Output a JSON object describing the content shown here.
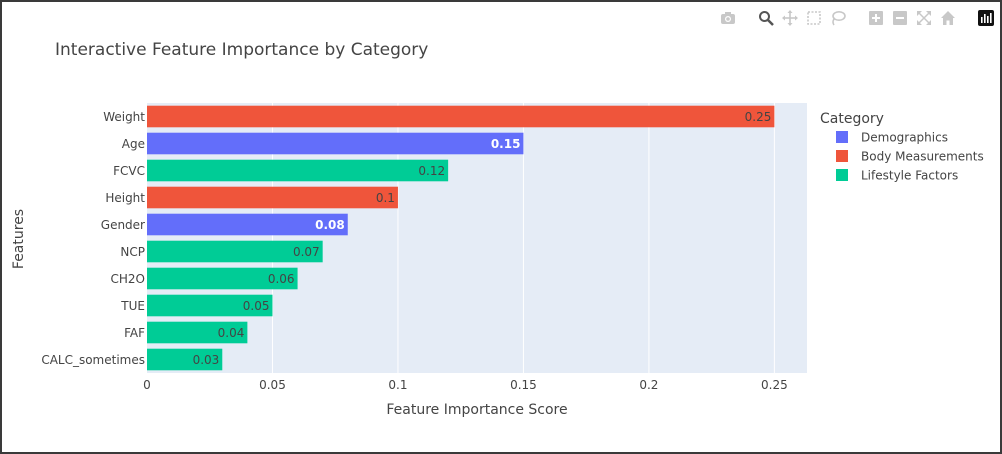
{
  "chart_data": {
    "type": "bar",
    "orientation": "horizontal",
    "title": "Interactive Feature Importance by Category",
    "xlabel": "Feature Importance Score",
    "ylabel": "Features",
    "xlim": [
      0,
      0.263
    ],
    "x_ticks": [
      0,
      0.05,
      0.1,
      0.15,
      0.2,
      0.25
    ],
    "x_tick_labels": [
      "0",
      "0.05",
      "0.1",
      "0.15",
      "0.2",
      "0.25"
    ],
    "grid": true,
    "legend": {
      "title": "Category",
      "placement": "right",
      "entries": [
        {
          "name": "Demographics",
          "color": "#636efa"
        },
        {
          "name": "Body Measurements",
          "color": "#ef553b"
        },
        {
          "name": "Lifestyle Factors",
          "color": "#00cc96"
        }
      ]
    },
    "bars": [
      {
        "feature": "Weight",
        "value": 0.25,
        "label": "0.25",
        "category": "Body Measurements"
      },
      {
        "feature": "Age",
        "value": 0.15,
        "label": "0.15",
        "category": "Demographics"
      },
      {
        "feature": "FCVC",
        "value": 0.12,
        "label": "0.12",
        "category": "Lifestyle Factors"
      },
      {
        "feature": "Height",
        "value": 0.1,
        "label": "0.1",
        "category": "Body Measurements"
      },
      {
        "feature": "Gender",
        "value": 0.08,
        "label": "0.08",
        "category": "Demographics"
      },
      {
        "feature": "NCP",
        "value": 0.07,
        "label": "0.07",
        "category": "Lifestyle Factors"
      },
      {
        "feature": "CH2O",
        "value": 0.06,
        "label": "0.06",
        "category": "Lifestyle Factors"
      },
      {
        "feature": "TUE",
        "value": 0.05,
        "label": "0.05",
        "category": "Lifestyle Factors"
      },
      {
        "feature": "FAF",
        "value": 0.04,
        "label": "0.04",
        "category": "Lifestyle Factors"
      },
      {
        "feature": "CALC_sometimes",
        "value": 0.03,
        "label": "0.03",
        "category": "Lifestyle Factors"
      }
    ],
    "label_colors": {
      "Demographics": "#ffffff",
      "Body Measurements": "#444444",
      "Lifestyle Factors": "#444444"
    }
  },
  "modebar": {
    "buttons": [
      {
        "name": "camera-icon"
      },
      {
        "name": "zoom-icon"
      },
      {
        "name": "pan-icon"
      },
      {
        "name": "box-select-icon"
      },
      {
        "name": "lasso-select-icon"
      },
      {
        "name": "zoom-in-icon"
      },
      {
        "name": "zoom-out-icon"
      },
      {
        "name": "autoscale-icon"
      },
      {
        "name": "reset-axes-icon"
      },
      {
        "name": "plotly-logo-icon"
      }
    ]
  },
  "colors": {
    "plot_bg": "#e5ecf6",
    "grid": "#ffffff",
    "text": "#444444"
  }
}
